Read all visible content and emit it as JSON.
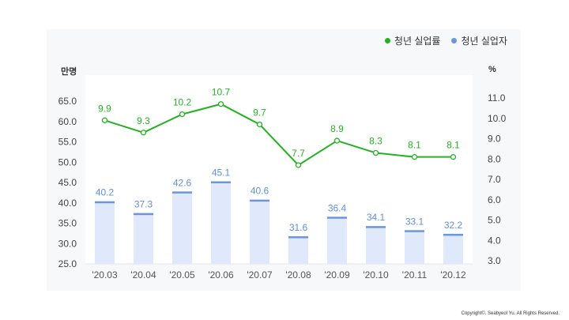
{
  "legend": {
    "rate_label": "청년 실업률",
    "count_label": "청년 실업자"
  },
  "units": {
    "left": "만명",
    "right": "%"
  },
  "copyright": "Copyright©. Seabyeol Yu. All Rights Reserved.",
  "colors": {
    "rate": "#22b322",
    "count": "#5f8fdc",
    "bar_fill": "#dfe9fb",
    "bar_cap": "#6b96dd"
  },
  "chart_data": {
    "type": "bar+line",
    "categories": [
      "'20.03",
      "'20.04",
      "'20.05",
      "'20.06",
      "'20.07",
      "'20.08",
      "'20.09",
      "'20.10",
      "'20.11",
      "'20.12"
    ],
    "series": [
      {
        "name": "청년 실업자",
        "type": "bar",
        "axis": "left",
        "values": [
          40.2,
          37.3,
          42.6,
          45.1,
          40.6,
          31.6,
          36.4,
          34.1,
          33.1,
          32.2
        ]
      },
      {
        "name": "청년 실업률",
        "type": "line",
        "axis": "right",
        "values": [
          9.9,
          9.3,
          10.2,
          10.7,
          9.7,
          7.7,
          8.9,
          8.3,
          8.1,
          8.1
        ]
      }
    ],
    "y_left": {
      "label": "만명",
      "ticks": [
        "25.0",
        "30.0",
        "35.0",
        "40.0",
        "45.0",
        "50.0",
        "55.0",
        "60.0",
        "65.0"
      ],
      "min": 25,
      "max": 65
    },
    "y_right": {
      "label": "%",
      "ticks": [
        "3.0",
        "4.0",
        "5.0",
        "6.0",
        "7.0",
        "8.0",
        "9.0",
        "10.0",
        "11.0"
      ],
      "min": 3,
      "max": 11
    },
    "legend_position": "top-right",
    "grid": false
  }
}
